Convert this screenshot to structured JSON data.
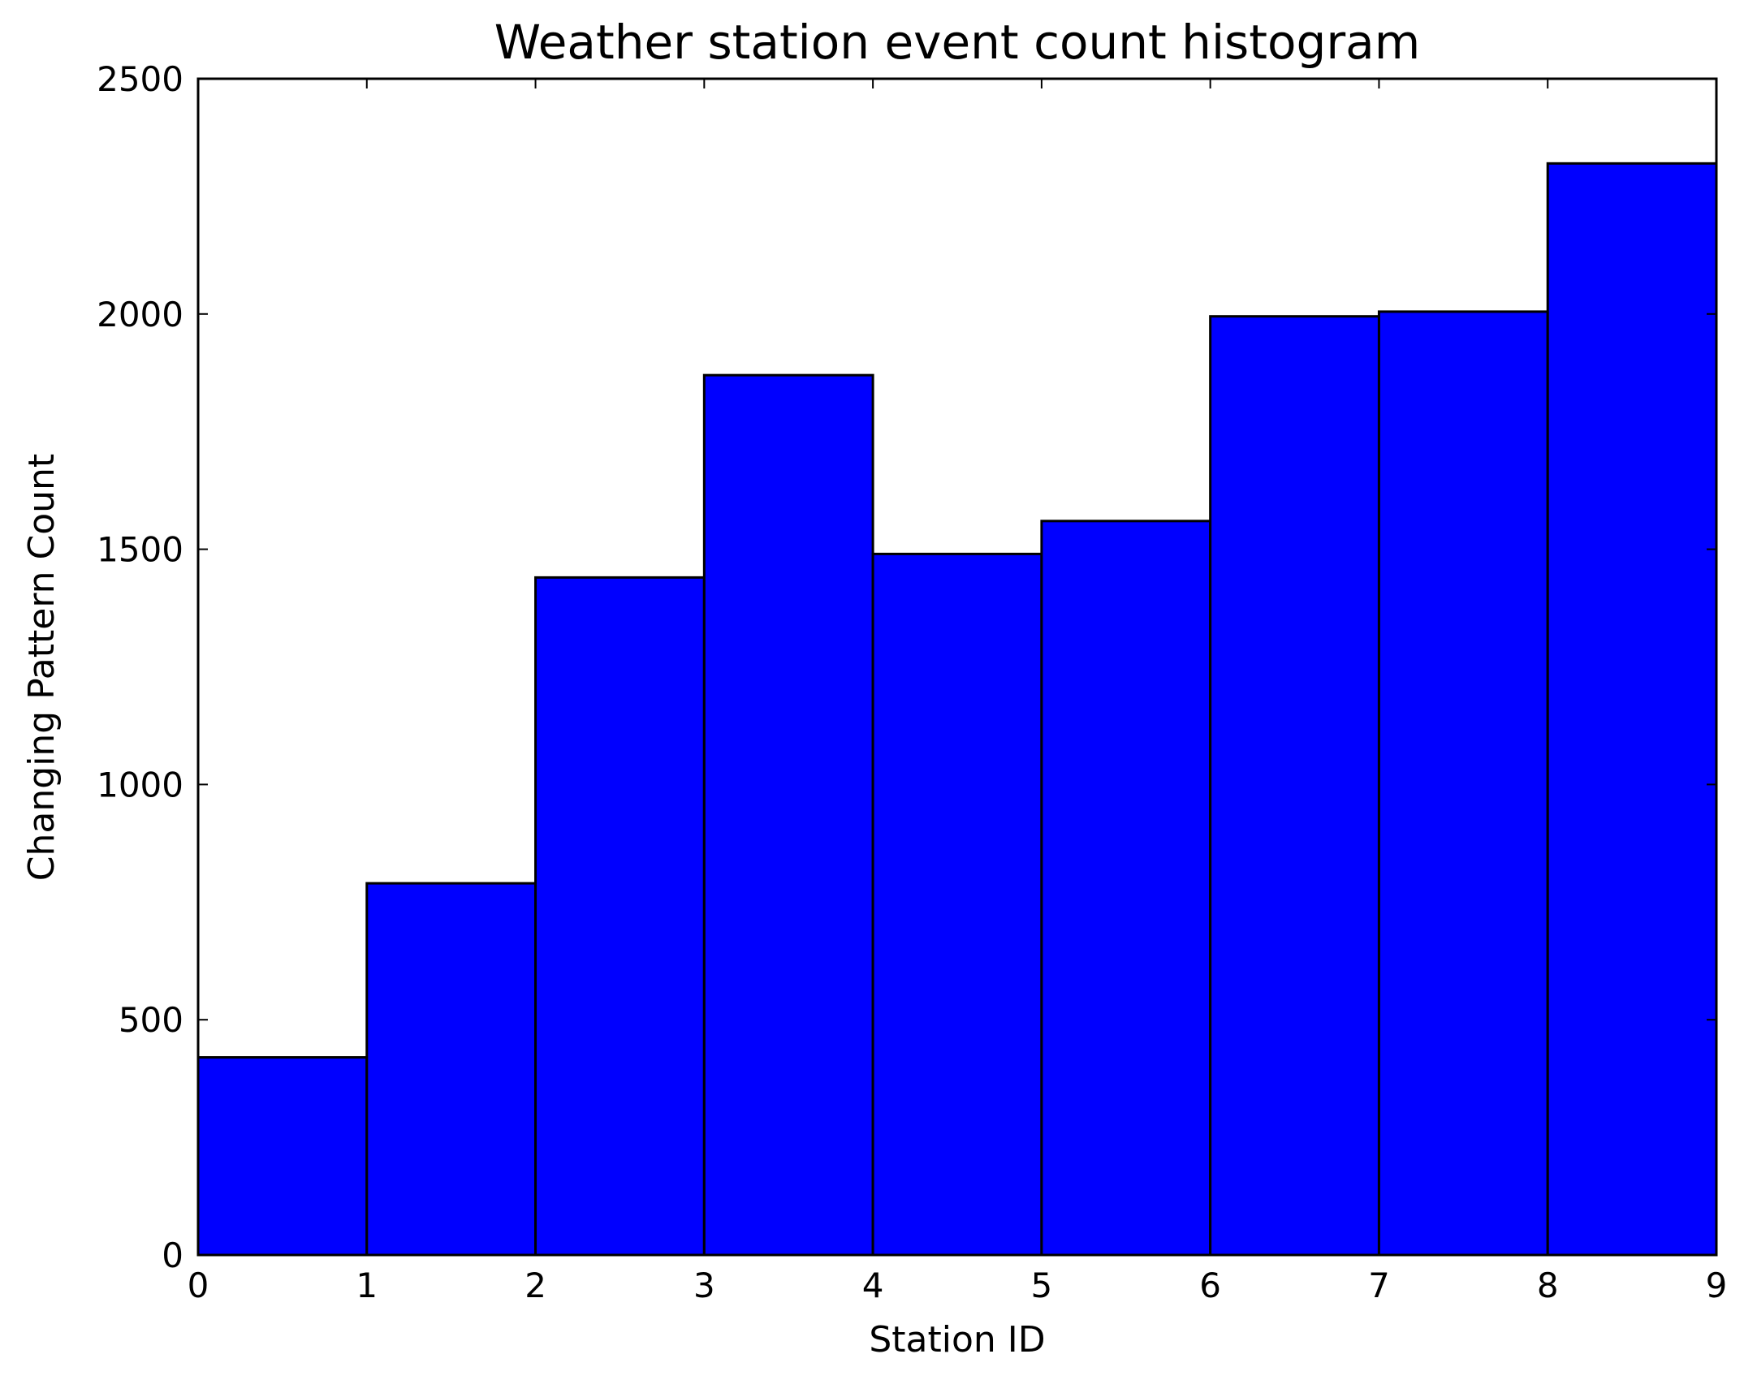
{
  "chart_data": {
    "type": "bar",
    "title": "Weather station event count histogram",
    "xlabel": "Station ID",
    "ylabel": "Changing Pattern Count",
    "bins": [
      {
        "x0": 0,
        "x1": 1,
        "value": 420
      },
      {
        "x0": 1,
        "x1": 2,
        "value": 790
      },
      {
        "x0": 2,
        "x1": 3,
        "value": 1440
      },
      {
        "x0": 3,
        "x1": 4,
        "value": 1870
      },
      {
        "x0": 4,
        "x1": 5,
        "value": 1490
      },
      {
        "x0": 5,
        "x1": 6,
        "value": 1560
      },
      {
        "x0": 6,
        "x1": 7,
        "value": 1995
      },
      {
        "x0": 7,
        "x1": 8,
        "value": 2005
      },
      {
        "x0": 8,
        "x1": 9,
        "value": 2320
      }
    ],
    "xlim": [
      0,
      9
    ],
    "ylim": [
      0,
      2500
    ],
    "xticks": [
      "0",
      "1",
      "2",
      "3",
      "4",
      "5",
      "6",
      "7",
      "8",
      "9"
    ],
    "yticks": [
      "0",
      "500",
      "1000",
      "1500",
      "2000",
      "2500"
    ],
    "bar_color": "#0000ff",
    "edge_color": "#000000",
    "grid": false,
    "legend": "none"
  }
}
